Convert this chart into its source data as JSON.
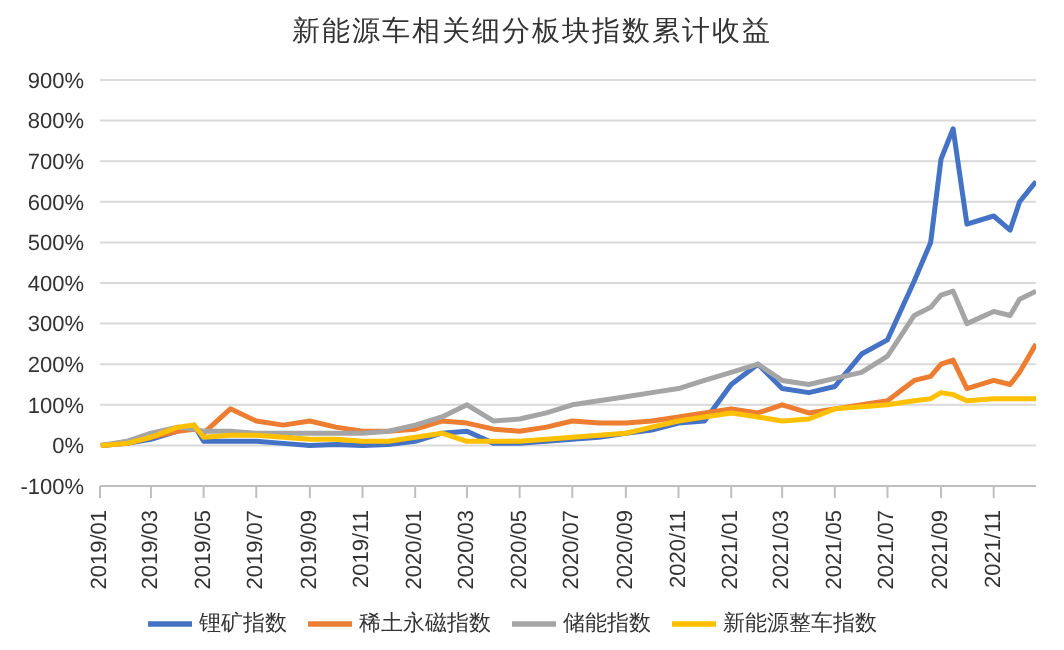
{
  "chart_data": {
    "type": "line",
    "title": "新能源车相关细分板块指数累计收益",
    "x": [
      "2019-01-02",
      "2019-02",
      "2019-03",
      "2019-04",
      "2019-04-20",
      "2019-05",
      "2019-06",
      "2019-07",
      "2019-08",
      "2019-09",
      "2019-10",
      "2019-11",
      "2019-12",
      "2020-01",
      "2020-02",
      "2020-03",
      "2020-04",
      "2020-05",
      "2020-06",
      "2020-07",
      "2020-08",
      "2020-09",
      "2020-10",
      "2020-11",
      "2020-12",
      "2021-01",
      "2021-02",
      "2021-03",
      "2021-04",
      "2021-05",
      "2021-06",
      "2021-07",
      "2021-08",
      "2021-08-20",
      "2021-09",
      "2021-09-15",
      "2021-10",
      "2021-11",
      "2021-11-20",
      "2021-12",
      "2021-12-20"
    ],
    "series": [
      {
        "name": "锂矿指数",
        "color": "#4472c4",
        "values": [
          0,
          5,
          15,
          35,
          50,
          10,
          10,
          10,
          5,
          0,
          2,
          0,
          2,
          10,
          30,
          35,
          5,
          5,
          10,
          15,
          20,
          30,
          38,
          55,
          60,
          150,
          200,
          140,
          130,
          145,
          225,
          260,
          405,
          500,
          705,
          780,
          545,
          565,
          530,
          600,
          650
        ]
      },
      {
        "name": "稀土永磁指数",
        "color": "#ed7d31",
        "values": [
          0,
          5,
          20,
          35,
          40,
          30,
          90,
          60,
          50,
          60,
          45,
          35,
          35,
          40,
          60,
          55,
          40,
          35,
          45,
          60,
          55,
          55,
          60,
          70,
          80,
          90,
          80,
          100,
          80,
          90,
          100,
          110,
          160,
          170,
          200,
          210,
          140,
          160,
          150,
          180,
          250
        ]
      },
      {
        "name": "储能指数",
        "color": "#a5a5a5",
        "values": [
          0,
          10,
          30,
          45,
          40,
          35,
          35,
          30,
          30,
          30,
          30,
          30,
          35,
          50,
          70,
          100,
          60,
          65,
          80,
          100,
          110,
          120,
          130,
          140,
          160,
          180,
          200,
          160,
          150,
          165,
          180,
          220,
          320,
          340,
          370,
          380,
          300,
          330,
          320,
          360,
          380
        ]
      },
      {
        "name": "新能源整车指数",
        "color": "#ffc000",
        "values": [
          0,
          5,
          20,
          45,
          50,
          20,
          25,
          25,
          20,
          15,
          15,
          10,
          10,
          20,
          30,
          10,
          10,
          10,
          15,
          20,
          25,
          30,
          45,
          60,
          70,
          80,
          70,
          60,
          65,
          90,
          95,
          100,
          110,
          115,
          130,
          125,
          110,
          115,
          115,
          115,
          115
        ]
      }
    ],
    "xlim": [
      "2019-01-01",
      "2021-12-20"
    ],
    "xticks": [
      {
        "value": "2019-01",
        "label": "2019/01"
      },
      {
        "value": "2019-03",
        "label": "2019/03"
      },
      {
        "value": "2019-05",
        "label": "2019/05"
      },
      {
        "value": "2019-07",
        "label": "2019/07"
      },
      {
        "value": "2019-09",
        "label": "2019/09"
      },
      {
        "value": "2019-11",
        "label": "2019/11"
      },
      {
        "value": "2020-01",
        "label": "2020/01"
      },
      {
        "value": "2020-03",
        "label": "2020/03"
      },
      {
        "value": "2020-05",
        "label": "2020/05"
      },
      {
        "value": "2020-07",
        "label": "2020/07"
      },
      {
        "value": "2020-09",
        "label": "2020/09"
      },
      {
        "value": "2020-11",
        "label": "2020/11"
      },
      {
        "value": "2021-01",
        "label": "2021/01"
      },
      {
        "value": "2021-03",
        "label": "2021/03"
      },
      {
        "value": "2021-05",
        "label": "2021/05"
      },
      {
        "value": "2021-07",
        "label": "2021/07"
      },
      {
        "value": "2021-09",
        "label": "2021/09"
      },
      {
        "value": "2021-11",
        "label": "2021/11"
      }
    ],
    "ylim": [
      -100,
      900
    ],
    "yticks": [
      {
        "value": -100,
        "label": "-100%"
      },
      {
        "value": 0,
        "label": "0%"
      },
      {
        "value": 100,
        "label": "100%"
      },
      {
        "value": 200,
        "label": "200%"
      },
      {
        "value": 300,
        "label": "300%"
      },
      {
        "value": 400,
        "label": "400%"
      },
      {
        "value": 500,
        "label": "500%"
      },
      {
        "value": 600,
        "label": "600%"
      },
      {
        "value": 700,
        "label": "700%"
      },
      {
        "value": 800,
        "label": "800%"
      },
      {
        "value": 900,
        "label": "900%"
      }
    ],
    "grid": "y",
    "legend": "bottom",
    "marker": "none",
    "line_style": "solid"
  }
}
